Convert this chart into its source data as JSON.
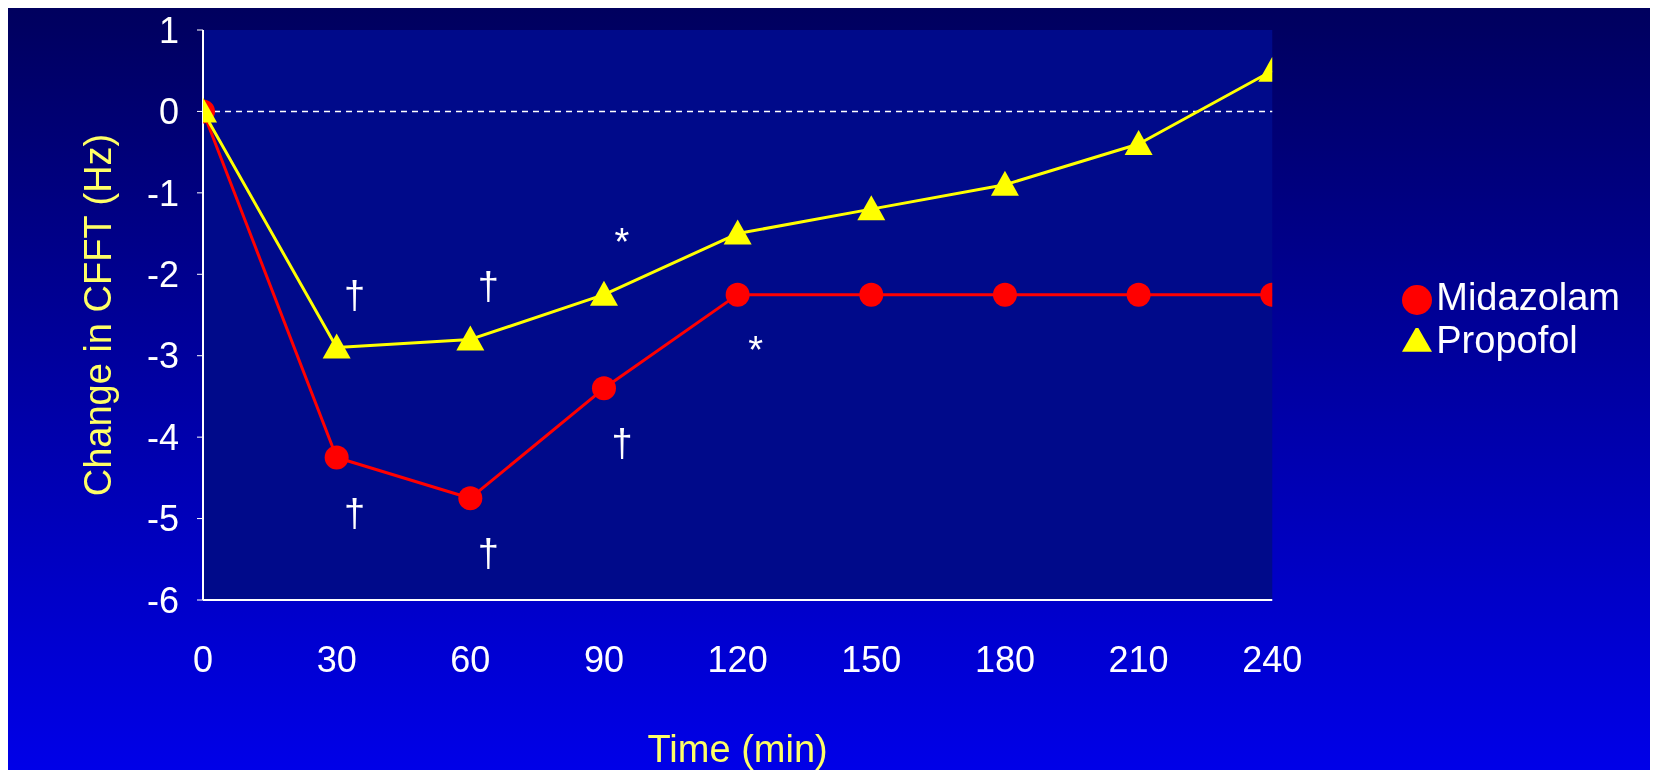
{
  "chart_data": {
    "type": "line",
    "xlabel": "Time (min)",
    "ylabel": "Change in CFFT (Hz)",
    "x": [
      0,
      30,
      60,
      90,
      120,
      150,
      180,
      210,
      240
    ],
    "series": [
      {
        "name": "Midazolam",
        "color": "#ff0000",
        "marker": "circle",
        "values": [
          0,
          -4.25,
          -4.75,
          -3.4,
          -2.25,
          -2.25,
          -2.25,
          -2.25,
          -2.25
        ]
      },
      {
        "name": "Propofol",
        "color": "#ffff00",
        "marker": "triangle",
        "values": [
          0,
          -2.9,
          -2.8,
          -2.25,
          -1.5,
          -1.2,
          -0.9,
          -0.4,
          0.5
        ]
      }
    ],
    "xlim": [
      0,
      240
    ],
    "xticks": [
      0,
      30,
      60,
      90,
      120,
      150,
      180,
      210,
      240
    ],
    "ylim": [
      -6,
      1
    ],
    "yticks": [
      -6,
      -5,
      -4,
      -3,
      -2,
      -1,
      0,
      1
    ],
    "ref_lines": [
      {
        "axis": "y",
        "value": 0,
        "color": "#ffffff",
        "line_style": "dashed"
      }
    ],
    "annotations": [
      {
        "text": "†",
        "x": 30,
        "y": -2.9
      },
      {
        "text": "†",
        "x": 60,
        "y": -2.8
      },
      {
        "text": "*",
        "x": 90,
        "y": -2.25
      },
      {
        "text": "†",
        "x": 30,
        "y": -4.25
      },
      {
        "text": "†",
        "x": 60,
        "y": -4.75
      },
      {
        "text": "†",
        "x": 90,
        "y": -3.4
      },
      {
        "text": "*",
        "x": 120,
        "y": -2.25
      }
    ],
    "grid": false,
    "legend": "right"
  }
}
